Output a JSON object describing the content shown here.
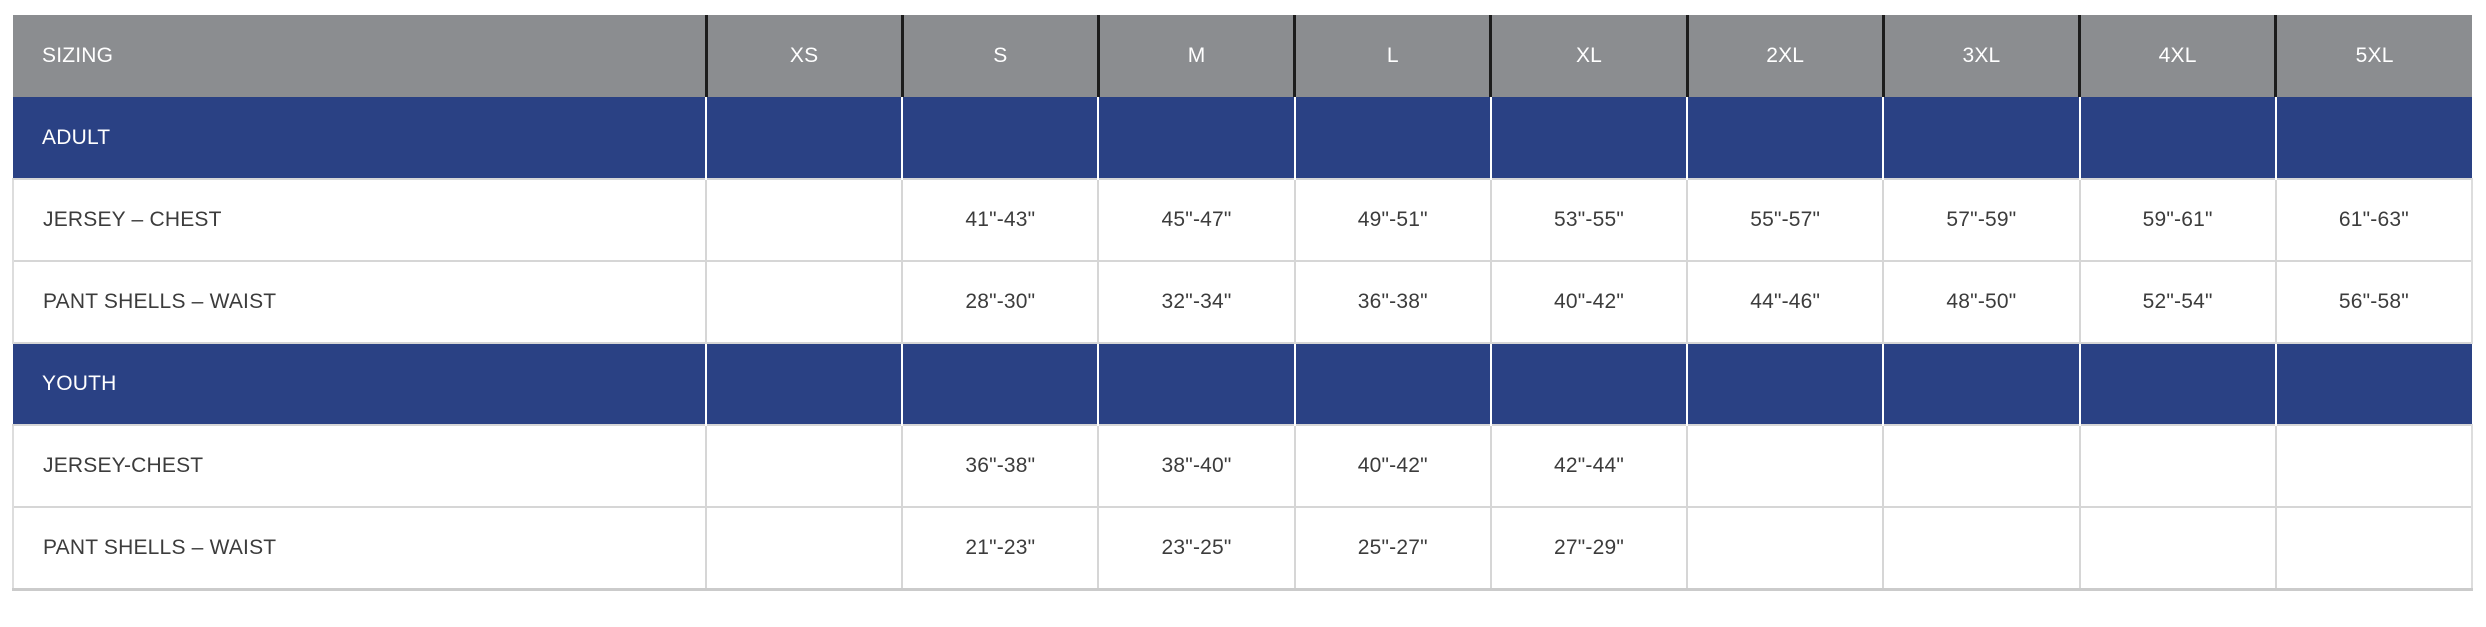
{
  "colors": {
    "header_bg": "#8b8d90",
    "section_bg": "#2a4184",
    "header_text": "#ffffff",
    "body_text": "#3c3c3c",
    "header_divider": "#1c1c1c",
    "grid_line": "#d6d6d6",
    "table_bottom_border": "#cbcbcb",
    "page_bg": "#ffffff"
  },
  "sizing_table": {
    "header": {
      "title": "SIZING",
      "columns": [
        "XS",
        "S",
        "M",
        "L",
        "XL",
        "2XL",
        "3XL",
        "4XL",
        "5XL"
      ]
    },
    "sections": [
      {
        "label": "ADULT",
        "rows": [
          {
            "label": "JERSEY – CHEST",
            "values": [
              "",
              "41\"-43\"",
              "45\"-47\"",
              "49\"-51\"",
              "53\"-55\"",
              "55\"-57\"",
              "57\"-59\"",
              "59\"-61\"",
              "61\"-63\""
            ]
          },
          {
            "label": "PANT SHELLS – WAIST",
            "values": [
              "",
              "28\"-30\"",
              "32\"-34\"",
              "36\"-38\"",
              "40\"-42\"",
              "44\"-46\"",
              "48\"-50\"",
              "52\"-54\"",
              "56\"-58\""
            ]
          }
        ]
      },
      {
        "label": "YOUTH",
        "rows": [
          {
            "label": "JERSEY-CHEST",
            "values": [
              "",
              "36\"-38\"",
              "38\"-40\"",
              "40\"-42\"",
              "42\"-44\"",
              "",
              "",
              "",
              ""
            ]
          },
          {
            "label": "PANT SHELLS – WAIST",
            "values": [
              "",
              "21\"-23\"",
              "23\"-25\"",
              "25\"-27\"",
              "27\"-29\"",
              "",
              "",
              "",
              ""
            ]
          }
        ]
      }
    ]
  }
}
